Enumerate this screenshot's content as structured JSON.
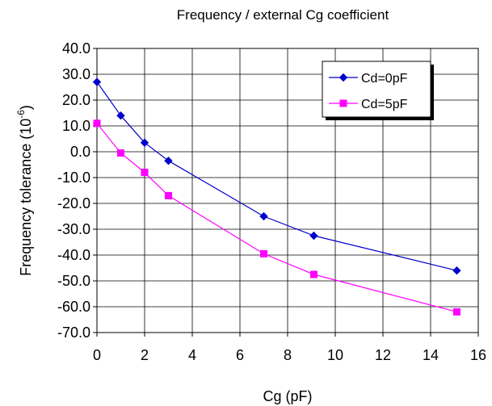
{
  "chart_data": {
    "type": "line",
    "title": "Frequency  / external Cg coefficient",
    "xlabel": "Cg (pF)",
    "ylabel": "Frequency tolerance  (10",
    "ylabel_sup": "-6",
    "ylabel_suffix": ")",
    "xlim": [
      0,
      16
    ],
    "ylim": [
      -70,
      40
    ],
    "xticks": [
      0,
      2,
      4,
      6,
      8,
      10,
      12,
      14,
      16
    ],
    "yticks": [
      40,
      30,
      20,
      10,
      0,
      -10,
      -20,
      -30,
      -40,
      -50,
      -60,
      -70
    ],
    "ytick_labels": [
      "40.0",
      "30.0",
      "20.0",
      "10.0",
      "0.0",
      "-10.0",
      "-20.0",
      "-30.0",
      "-40.0",
      "-50.0",
      "-60.0",
      "-70.0"
    ],
    "grid": true,
    "legend_position": "top-right",
    "series": [
      {
        "name": "Cd=0pF",
        "color": "#0000cc",
        "marker": "diamond",
        "x": [
          0,
          1,
          2,
          3,
          7,
          9.1,
          15.1
        ],
        "y": [
          27,
          14,
          3.5,
          -3.5,
          -25,
          -32.5,
          -46
        ]
      },
      {
        "name": "Cd=5pF",
        "color": "#ff00ff",
        "marker": "square",
        "x": [
          0,
          1,
          2,
          3,
          7,
          9.1,
          15.1
        ],
        "y": [
          11,
          -0.5,
          -8,
          -17,
          -39.5,
          -47.5,
          -62
        ]
      }
    ]
  }
}
